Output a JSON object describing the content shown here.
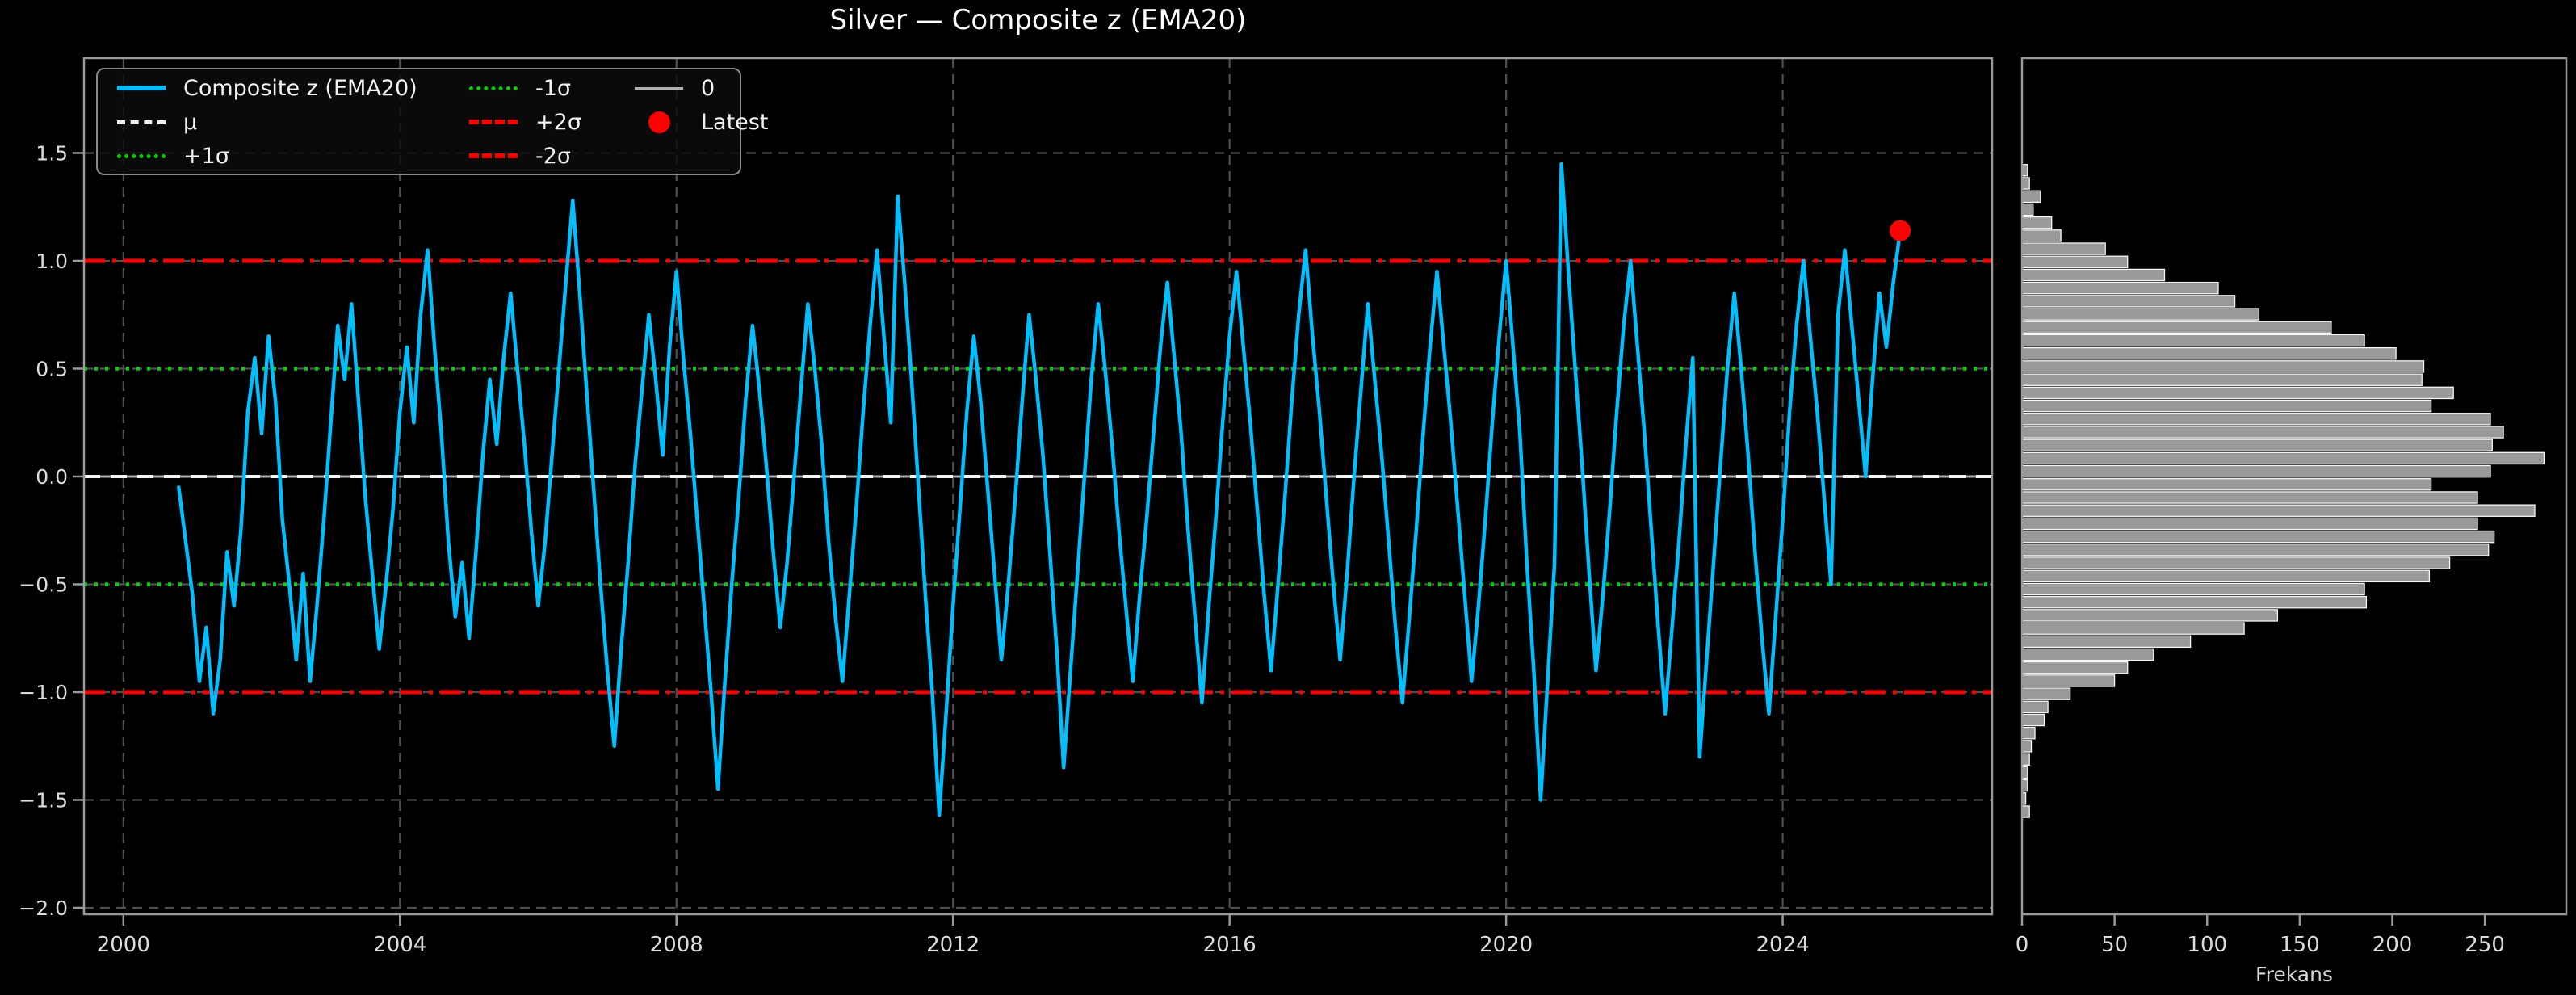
{
  "title": "Silver — Composite z (EMA20)",
  "legend": {
    "items": [
      {
        "label": "Composite z (EMA20)",
        "swatch": "line-cyan"
      },
      {
        "label": "μ",
        "swatch": "dash-white"
      },
      {
        "label": "+1σ",
        "swatch": "dot-green"
      },
      {
        "label": "-1σ",
        "swatch": "dot-green"
      },
      {
        "label": "+2σ",
        "swatch": "dashdot-red"
      },
      {
        "label": "-2σ",
        "swatch": "dashdot-red"
      },
      {
        "label": "0",
        "swatch": "line-gray"
      },
      {
        "label": "Latest",
        "swatch": "dot-red"
      }
    ]
  },
  "colors": {
    "background": "#000000",
    "series": "#00bfff",
    "mu": "#f5f5f5",
    "sigma1": "#00d400",
    "sigma2": "#ff0000",
    "zero": "#b0b0b0",
    "latest": "#ff0000",
    "grid": "#4f4f4f",
    "spine": "#999999",
    "tick_text": "#dcdcdc",
    "title_text": "#ffffff",
    "bar_fill": "#999999",
    "bar_edge": "#f5f5f5"
  },
  "chart_data": [
    {
      "type": "line",
      "title": "Silver — Composite z (EMA20)",
      "xlabel": "",
      "ylabel": "",
      "xlim": [
        1999.43,
        2027.03
      ],
      "ylim": [
        -2.03,
        1.94
      ],
      "xticks": [
        2000,
        2004,
        2008,
        2012,
        2016,
        2020,
        2024
      ],
      "xticklabels": [
        "2000",
        "2004",
        "2008",
        "2012",
        "2016",
        "2020",
        "2024"
      ],
      "yticks": [
        -2.0,
        -1.5,
        -1.0,
        -0.5,
        0.0,
        0.5,
        1.0,
        1.5
      ],
      "yticklabels": [
        "−2.0",
        "−1.5",
        "−1.0",
        "−0.5",
        "0.0",
        "0.5",
        "1.0",
        "1.5"
      ],
      "grid": true,
      "legend_position": "upper left",
      "ref_lines": [
        {
          "name": "zero",
          "label": "0",
          "value": 0.0,
          "color": "#b0b0b0",
          "style": "solid",
          "width": 3
        },
        {
          "name": "mu",
          "label": "μ",
          "value": 0.0,
          "color": "#f5f5f5",
          "style": "dashed",
          "width": 4
        },
        {
          "name": "plus-1sigma",
          "label": "+1σ",
          "value": 0.5,
          "color": "#00d400",
          "style": "dotted",
          "width": 4.5
        },
        {
          "name": "minus-1sigma",
          "label": "-1σ",
          "value": -0.5,
          "color": "#00d400",
          "style": "dotted",
          "width": 4.5
        },
        {
          "name": "plus-2sigma",
          "label": "+2σ",
          "value": 1.0,
          "color": "#ff0000",
          "style": "dashdot",
          "width": 5
        },
        {
          "name": "minus-2sigma",
          "label": "-2σ",
          "value": -1.0,
          "color": "#ff0000",
          "style": "dashdot",
          "width": 5
        }
      ],
      "latest": {
        "x": 2025.7,
        "y": 1.14,
        "color": "#ff0000",
        "label": "Latest"
      },
      "series": [
        {
          "name": "Composite z (EMA20)",
          "color": "#00bfff",
          "x_start": 2000.8,
          "x_step": 0.1,
          "values": [
            -0.05,
            -0.3,
            -0.55,
            -0.95,
            -0.7,
            -1.1,
            -0.85,
            -0.35,
            -0.6,
            -0.25,
            0.3,
            0.55,
            0.2,
            0.65,
            0.35,
            -0.2,
            -0.5,
            -0.85,
            -0.45,
            -0.95,
            -0.6,
            -0.2,
            0.25,
            0.7,
            0.45,
            0.8,
            0.35,
            -0.1,
            -0.45,
            -0.8,
            -0.5,
            -0.15,
            0.3,
            0.6,
            0.25,
            0.75,
            1.05,
            0.6,
            0.2,
            -0.3,
            -0.65,
            -0.4,
            -0.75,
            -0.35,
            0.1,
            0.45,
            0.15,
            0.55,
            0.85,
            0.5,
            0.15,
            -0.25,
            -0.6,
            -0.3,
            0.1,
            0.5,
            0.9,
            1.28,
            0.85,
            0.4,
            -0.05,
            -0.5,
            -0.9,
            -1.25,
            -0.8,
            -0.4,
            0.05,
            0.4,
            0.75,
            0.45,
            0.1,
            0.6,
            0.95,
            0.55,
            0.2,
            -0.2,
            -0.6,
            -1.0,
            -1.45,
            -0.95,
            -0.5,
            -0.1,
            0.35,
            0.7,
            0.4,
            0.05,
            -0.35,
            -0.7,
            -0.4,
            0.0,
            0.4,
            0.8,
            0.5,
            0.15,
            -0.3,
            -0.65,
            -0.95,
            -0.55,
            -0.15,
            0.3,
            0.7,
            1.05,
            0.65,
            0.25,
            1.3,
            0.9,
            0.45,
            -0.05,
            -0.55,
            -1.0,
            -1.57,
            -1.1,
            -0.6,
            -0.15,
            0.3,
            0.65,
            0.35,
            -0.05,
            -0.45,
            -0.85,
            -0.5,
            -0.1,
            0.35,
            0.75,
            0.45,
            0.1,
            -0.35,
            -0.8,
            -1.35,
            -0.9,
            -0.45,
            0.0,
            0.45,
            0.8,
            0.5,
            0.15,
            -0.25,
            -0.6,
            -0.95,
            -0.55,
            -0.2,
            0.2,
            0.6,
            0.9,
            0.55,
            0.2,
            -0.25,
            -0.65,
            -1.05,
            -0.6,
            -0.2,
            0.25,
            0.65,
            0.95,
            0.6,
            0.25,
            -0.15,
            -0.55,
            -0.9,
            -0.5,
            -0.1,
            0.35,
            0.75,
            1.05,
            0.65,
            0.3,
            -0.1,
            -0.5,
            -0.85,
            -0.45,
            0.0,
            0.4,
            0.8,
            0.45,
            0.1,
            -0.3,
            -0.7,
            -1.05,
            -0.65,
            -0.25,
            0.2,
            0.6,
            0.95,
            0.6,
            0.25,
            -0.15,
            -0.55,
            -0.95,
            -0.6,
            -0.2,
            0.25,
            0.65,
            1.0,
            0.6,
            0.2,
            -0.4,
            -0.9,
            -1.5,
            -0.95,
            -0.4,
            1.45,
            0.95,
            0.5,
            0.05,
            -0.45,
            -0.9,
            -0.55,
            -0.15,
            0.3,
            0.7,
            1.0,
            0.6,
            0.2,
            -0.25,
            -0.7,
            -1.1,
            -0.7,
            -0.3,
            0.15,
            0.55,
            -1.3,
            -0.85,
            -0.4,
            0.05,
            0.5,
            0.85,
            0.5,
            0.1,
            -0.35,
            -0.75,
            -1.1,
            -0.65,
            -0.2,
            0.3,
            0.7,
            1.0,
            0.65,
            0.3,
            -0.1,
            -0.5,
            0.75,
            1.05,
            0.7,
            0.35,
            0.0,
            0.45,
            0.85,
            0.6,
            0.9,
            1.14
          ]
        }
      ]
    },
    {
      "type": "bar",
      "orientation": "horizontal",
      "title": "",
      "xlabel": "Frekans",
      "ylabel": "",
      "xlim": [
        0,
        294
      ],
      "ylim": [
        -2.03,
        1.94
      ],
      "xticks": [
        0,
        50,
        100,
        150,
        200,
        250
      ],
      "xticklabels": [
        "0",
        "50",
        "100",
        "150",
        "200",
        "250"
      ],
      "grid": false,
      "bins": {
        "z_top": 1.42,
        "z_step": 0.0607,
        "counts": [
          3,
          4,
          10,
          6,
          16,
          21,
          45,
          57,
          77,
          106,
          115,
          128,
          167,
          185,
          202,
          217,
          216,
          233,
          221,
          253,
          260,
          254,
          282,
          253,
          221,
          246,
          277,
          246,
          255,
          252,
          231,
          220,
          185,
          186,
          138,
          120,
          91,
          71,
          57,
          50,
          26,
          14,
          12,
          7,
          5,
          4,
          3,
          3,
          2,
          4
        ]
      }
    }
  ]
}
